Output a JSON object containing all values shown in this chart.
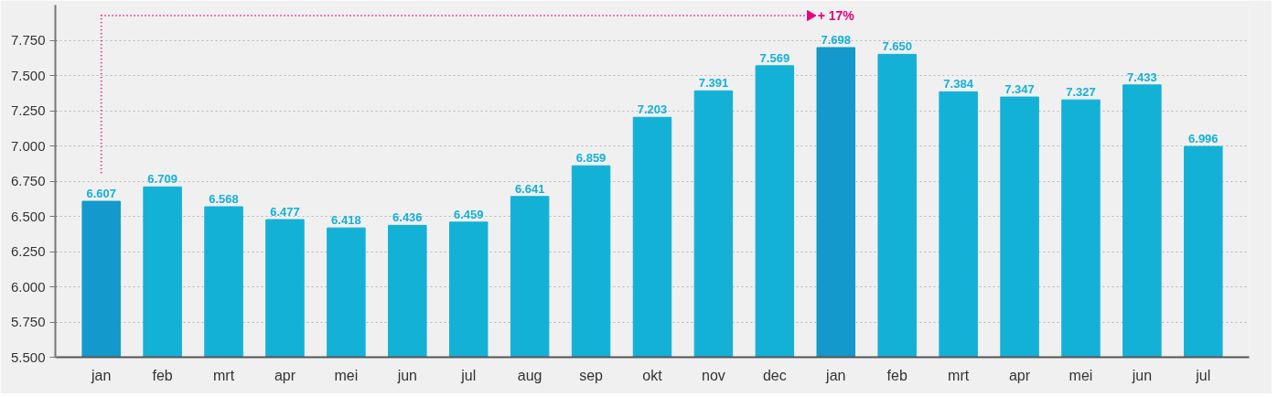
{
  "chart_data": {
    "type": "bar",
    "categories": [
      "jan",
      "feb",
      "mrt",
      "apr",
      "mei",
      "jun",
      "jul",
      "aug",
      "sep",
      "okt",
      "nov",
      "dec",
      "jan",
      "feb",
      "mrt",
      "apr",
      "mei",
      "jun",
      "jul"
    ],
    "values": [
      6607,
      6709,
      6568,
      6477,
      6418,
      6436,
      6459,
      6641,
      6859,
      7203,
      7391,
      7569,
      7698,
      7650,
      7384,
      7347,
      7327,
      7433,
      6996
    ],
    "value_labels": [
      "6.607",
      "6.709",
      "6.568",
      "6.477",
      "6.418",
      "6.436",
      "6.459",
      "6.641",
      "6.859",
      "7.203",
      "7.391",
      "7.569",
      "7.698",
      "7.650",
      "7.384",
      "7.347",
      "7.327",
      "7.433",
      "6.996"
    ],
    "colors": [
      "#1399cb",
      "#14b1d6",
      "#14b1d6",
      "#14b1d6",
      "#14b1d6",
      "#14b1d6",
      "#14b1d6",
      "#14b1d6",
      "#14b1d6",
      "#14b1d6",
      "#14b1d6",
      "#14b1d6",
      "#1399cb",
      "#14b1d6",
      "#14b1d6",
      "#14b1d6",
      "#14b1d6",
      "#14b1d6",
      "#14b1d6"
    ],
    "ylim": [
      5500,
      8000
    ],
    "yticks": [
      {
        "value": 5500,
        "label": "5.500"
      },
      {
        "value": 5750,
        "label": "5.750"
      },
      {
        "value": 6000,
        "label": "6.000"
      },
      {
        "value": 6250,
        "label": "6.250"
      },
      {
        "value": 6500,
        "label": "6.500"
      },
      {
        "value": 6750,
        "label": "6.750"
      },
      {
        "value": 7000,
        "label": "7.000"
      },
      {
        "value": 7250,
        "label": "7.250"
      },
      {
        "value": 7500,
        "label": "7.500"
      },
      {
        "value": 7750,
        "label": "7.750"
      }
    ],
    "grid": "y",
    "annotations": [
      "+ 17%"
    ]
  }
}
